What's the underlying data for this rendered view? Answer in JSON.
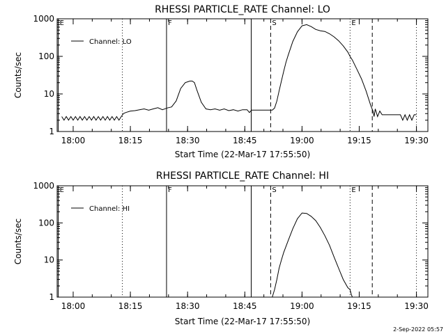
{
  "footer": {
    "date": "2-Sep-2022 05:57"
  },
  "chart_data": [
    {
      "type": "line",
      "title": "RHESSI PARTICLE_RATE Channel: LO",
      "xlabel": "Start Time (22-Mar-17 17:55:50)",
      "ylabel": "Counts/sec",
      "xlim": [
        17.93,
        19.55
      ],
      "ylim": [
        1,
        1000
      ],
      "yscale": "log",
      "legend_position": "top-left",
      "x_ticks": [
        {
          "v": 18.0,
          "label": "18:00"
        },
        {
          "v": 18.25,
          "label": "18:15"
        },
        {
          "v": 18.5,
          "label": "18:30"
        },
        {
          "v": 18.75,
          "label": "18:45"
        },
        {
          "v": 19.0,
          "label": "19:00"
        },
        {
          "v": 19.25,
          "label": "19:15"
        },
        {
          "v": 19.5,
          "label": "19:30"
        }
      ],
      "y_ticks": [
        {
          "v": 1,
          "label": "1"
        },
        {
          "v": 10,
          "label": "10"
        },
        {
          "v": 100,
          "label": "100"
        },
        {
          "v": 1000,
          "label": "1000"
        }
      ],
      "markers": [
        {
          "x": 17.935,
          "style": "solid",
          "label": "E"
        },
        {
          "x": 18.215,
          "style": "dotted",
          "label": ""
        },
        {
          "x": 18.408,
          "style": "solid",
          "label": "F"
        },
        {
          "x": 18.778,
          "style": "solid",
          "label": ""
        },
        {
          "x": 18.863,
          "style": "dashed",
          "label": "S"
        },
        {
          "x": 19.21,
          "style": "dotted",
          "label": "E"
        },
        {
          "x": 19.307,
          "style": "dashed",
          "label": ""
        },
        {
          "x": 19.5,
          "style": "dotted",
          "label": ""
        }
      ],
      "series": [
        {
          "name": "Channel: LO",
          "x": [
            17.95,
            17.96,
            17.97,
            17.98,
            17.99,
            18.0,
            18.01,
            18.02,
            18.03,
            18.04,
            18.05,
            18.06,
            18.07,
            18.08,
            18.09,
            18.1,
            18.11,
            18.12,
            18.13,
            18.14,
            18.15,
            18.16,
            18.17,
            18.18,
            18.19,
            18.2,
            18.21,
            18.22,
            18.23,
            18.25,
            18.27,
            18.29,
            18.31,
            18.33,
            18.35,
            18.37,
            18.39,
            18.41,
            18.43,
            18.45,
            18.47,
            18.49,
            18.5,
            18.51,
            18.52,
            18.53,
            18.54,
            18.56,
            18.58,
            18.6,
            18.62,
            18.64,
            18.66,
            18.68,
            18.7,
            18.72,
            18.74,
            18.76,
            18.77,
            18.78,
            18.8,
            18.82,
            18.84,
            18.86,
            18.87,
            18.88,
            18.89,
            18.9,
            18.91,
            18.92,
            18.93,
            18.94,
            18.96,
            18.98,
            19.0,
            19.02,
            19.04,
            19.06,
            19.08,
            19.1,
            19.12,
            19.14,
            19.16,
            19.18,
            19.2,
            19.21,
            19.22,
            19.24,
            19.26,
            19.28,
            19.3,
            19.31,
            19.315,
            19.32,
            19.33,
            19.34,
            19.35,
            19.37,
            19.39,
            19.41,
            19.43,
            19.44,
            19.45,
            19.46,
            19.47,
            19.48,
            19.49,
            19.5
          ],
          "values": [
            2.5,
            2.0,
            2.5,
            2.0,
            2.5,
            2.0,
            2.5,
            2.0,
            2.5,
            2.0,
            2.5,
            2.0,
            2.5,
            2.0,
            2.5,
            2.0,
            2.5,
            2.0,
            2.5,
            2.0,
            2.5,
            2.0,
            2.5,
            2.0,
            2.5,
            2.0,
            2.5,
            3.0,
            3.2,
            3.5,
            3.6,
            3.8,
            4.0,
            3.7,
            4.0,
            4.3,
            3.8,
            4.2,
            4.5,
            6.5,
            14,
            20,
            21,
            22,
            22,
            20,
            13,
            6,
            4,
            3.8,
            4.0,
            3.7,
            4.0,
            3.6,
            3.8,
            3.5,
            3.8,
            3.8,
            3.2,
            3.7,
            3.7,
            3.7,
            3.7,
            3.7,
            3.7,
            4.2,
            6.5,
            12,
            22,
            40,
            70,
            110,
            250,
            450,
            650,
            700,
            620,
            520,
            480,
            460,
            400,
            330,
            260,
            190,
            130,
            100,
            80,
            45,
            25,
            12,
            5,
            3.5,
            2.5,
            4.0,
            2.5,
            3.5,
            2.8,
            2.8,
            2.8,
            2.8,
            2.8,
            2.0,
            2.8,
            2.0,
            2.8,
            2.0,
            2.8,
            2.8
          ]
        }
      ]
    },
    {
      "type": "line",
      "title": "RHESSI PARTICLE_RATE Channel: HI",
      "xlabel": "Start Time (22-Mar-17 17:55:50)",
      "ylabel": "Counts/sec",
      "xlim": [
        17.93,
        19.55
      ],
      "ylim": [
        1,
        1000
      ],
      "yscale": "log",
      "legend_position": "top-left",
      "x_ticks": [
        {
          "v": 18.0,
          "label": "18:00"
        },
        {
          "v": 18.25,
          "label": "18:15"
        },
        {
          "v": 18.5,
          "label": "18:30"
        },
        {
          "v": 18.75,
          "label": "18:45"
        },
        {
          "v": 19.0,
          "label": "19:00"
        },
        {
          "v": 19.25,
          "label": "19:15"
        },
        {
          "v": 19.5,
          "label": "19:30"
        }
      ],
      "y_ticks": [
        {
          "v": 1,
          "label": "1"
        },
        {
          "v": 10,
          "label": "10"
        },
        {
          "v": 100,
          "label": "100"
        },
        {
          "v": 1000,
          "label": "1000"
        }
      ],
      "markers": [
        {
          "x": 17.935,
          "style": "solid",
          "label": "E"
        },
        {
          "x": 18.215,
          "style": "dotted",
          "label": ""
        },
        {
          "x": 18.408,
          "style": "solid",
          "label": "F"
        },
        {
          "x": 18.778,
          "style": "solid",
          "label": ""
        },
        {
          "x": 18.863,
          "style": "dashed",
          "label": "S"
        },
        {
          "x": 19.21,
          "style": "dotted",
          "label": "E"
        },
        {
          "x": 19.307,
          "style": "dashed",
          "label": ""
        },
        {
          "x": 19.5,
          "style": "dotted",
          "label": ""
        }
      ],
      "series": [
        {
          "name": "Channel: HI",
          "x": [
            18.87,
            18.88,
            18.89,
            18.9,
            18.91,
            18.92,
            18.94,
            18.96,
            18.98,
            19.0,
            19.02,
            19.04,
            19.06,
            19.08,
            19.1,
            19.12,
            19.14,
            19.16,
            19.18,
            19.2,
            19.21,
            19.215,
            19.22
          ],
          "values": [
            1.0,
            1.6,
            3,
            6,
            10,
            16,
            34,
            70,
            130,
            185,
            180,
            150,
            115,
            75,
            45,
            25,
            12,
            6,
            3,
            1.8,
            1.6,
            1.2,
            1.0
          ]
        }
      ]
    }
  ]
}
